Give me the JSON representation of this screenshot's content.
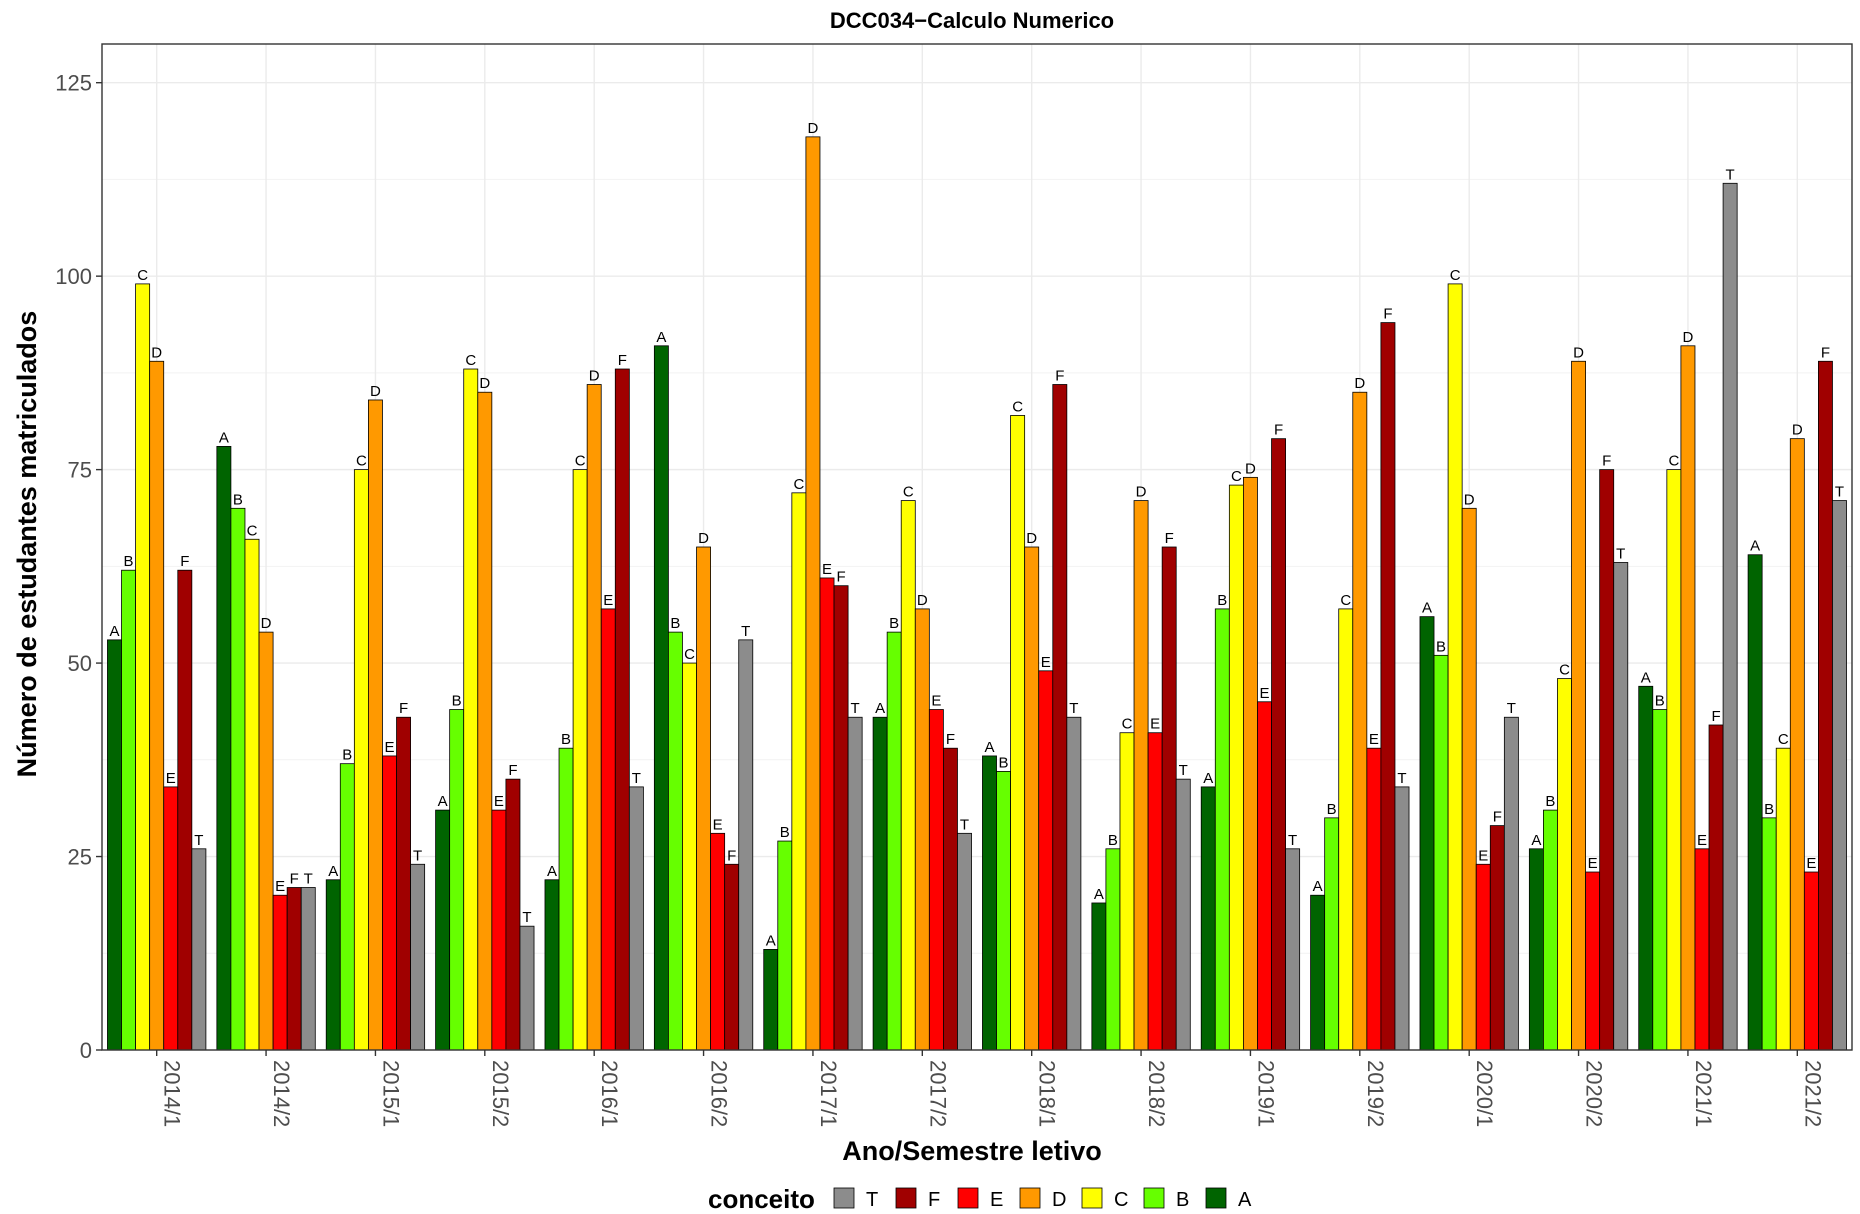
{
  "chart_data": {
    "type": "bar",
    "title": "DCC034−Calculo Numerico",
    "xlabel": "Ano/Semestre letivo",
    "ylabel": "Número de estudantes matriculados",
    "ylim": [
      0,
      130
    ],
    "yticks": [
      0,
      25,
      50,
      75,
      100,
      125
    ],
    "grid": true,
    "legend_title": "conceito",
    "legend_position": "bottom",
    "categories": [
      "2014/1",
      "2014/2",
      "2015/1",
      "2015/2",
      "2016/1",
      "2016/2",
      "2017/1",
      "2017/2",
      "2018/1",
      "2018/2",
      "2019/1",
      "2019/2",
      "2020/1",
      "2020/2",
      "2021/1",
      "2021/2"
    ],
    "series": [
      {
        "name": "A",
        "color": "#006400",
        "values": [
          53,
          78,
          22,
          31,
          22,
          91,
          13,
          43,
          38,
          19,
          34,
          20,
          56,
          26,
          47,
          64
        ]
      },
      {
        "name": "B",
        "color": "#66FF00",
        "values": [
          62,
          70,
          37,
          44,
          39,
          54,
          27,
          54,
          36,
          26,
          57,
          30,
          51,
          31,
          44,
          30
        ]
      },
      {
        "name": "C",
        "color": "#FFFF00",
        "values": [
          99,
          66,
          75,
          88,
          75,
          50,
          72,
          71,
          82,
          41,
          73,
          57,
          99,
          48,
          75,
          39
        ]
      },
      {
        "name": "D",
        "color": "#FF9900",
        "values": [
          89,
          54,
          84,
          85,
          86,
          65,
          118,
          57,
          65,
          71,
          74,
          85,
          70,
          89,
          91,
          79
        ]
      },
      {
        "name": "E",
        "color": "#FF0000",
        "values": [
          34,
          20,
          38,
          31,
          57,
          28,
          61,
          44,
          49,
          41,
          45,
          39,
          24,
          23,
          26,
          23
        ]
      },
      {
        "name": "F",
        "color": "#A00000",
        "values": [
          62,
          21,
          43,
          35,
          88,
          24,
          60,
          39,
          86,
          65,
          79,
          94,
          29,
          75,
          42,
          89
        ]
      },
      {
        "name": "T",
        "color": "#8C8C8C",
        "values": [
          26,
          21,
          24,
          16,
          34,
          53,
          43,
          28,
          43,
          35,
          26,
          34,
          43,
          63,
          112,
          71
        ]
      }
    ],
    "legend_order": [
      "T",
      "F",
      "E",
      "D",
      "C",
      "B",
      "A"
    ]
  }
}
